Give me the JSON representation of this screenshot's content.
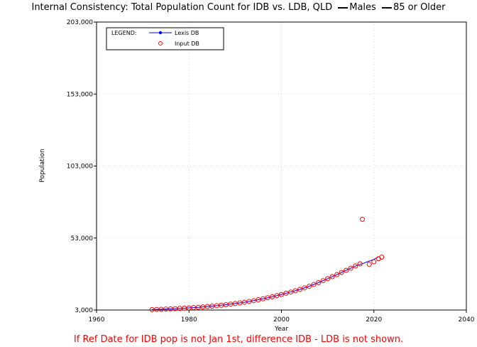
{
  "title": {
    "main": "Internal Consistency: Total Population Count for IDB vs. LDB, QLD",
    "part2": "Males",
    "part3": "85 or Older"
  },
  "footnote": "If Ref Date for IDB pop is not Jan 1st, difference IDB - LDB is not shown.",
  "legend": {
    "heading": "LEGEND:",
    "series1_label": "Lexis DB",
    "series2_label": "Input DB"
  },
  "colors": {
    "lexis": "#0000ff",
    "input": "#ff0000",
    "axis": "#000000"
  },
  "chart_data": {
    "type": "line",
    "xlabel": "Year",
    "ylabel": "Population",
    "xlim": [
      1960,
      2040
    ],
    "ylim": [
      3000,
      203000
    ],
    "xticks": [
      1960,
      1980,
      2000,
      2020,
      2040
    ],
    "xtick_labels": [
      "1960",
      "1980",
      "2000",
      "2020",
      "2040"
    ],
    "yticks": [
      3000,
      53000,
      103000,
      153000,
      203000
    ],
    "ytick_labels": [
      "3,000",
      "53,000",
      "103,000",
      "153,000",
      "203,000"
    ],
    "grid": true,
    "legend_position": "top-left",
    "series": [
      {
        "name": "Lexis DB",
        "style": "line",
        "x": [
          1972,
          1974,
          1976,
          1978,
          1980,
          1982,
          1984,
          1986,
          1988,
          1990,
          1992,
          1994,
          1996,
          1998,
          2000,
          2002,
          2004,
          2006,
          2008,
          2010,
          2012,
          2014,
          2016,
          2018,
          2020,
          2021
        ],
        "y": [
          3300,
          3500,
          3800,
          4100,
          4500,
          4900,
          5400,
          6000,
          6700,
          7500,
          8400,
          9500,
          10800,
          12200,
          13800,
          15500,
          17300,
          19500,
          22000,
          24800,
          27600,
          30600,
          33500,
          35800,
          38200,
          40000
        ]
      },
      {
        "name": "Input DB",
        "style": "markers",
        "x": [
          1972,
          1973,
          1974,
          1975,
          1976,
          1977,
          1978,
          1979,
          1980,
          1981,
          1982,
          1983,
          1984,
          1985,
          1986,
          1987,
          1988,
          1989,
          1990,
          1991,
          1992,
          1993,
          1994,
          1995,
          1996,
          1997,
          1998,
          1999,
          2000,
          2001,
          2002,
          2003,
          2004,
          2005,
          2006,
          2007,
          2008,
          2009,
          2010,
          2011,
          2012,
          2013,
          2014,
          2015,
          2016,
          2017,
          2017.5,
          2019,
          2020,
          2021,
          2021.7
        ],
        "y": [
          3300,
          3400,
          3500,
          3650,
          3800,
          3950,
          4100,
          4300,
          4500,
          4700,
          4900,
          5150,
          5400,
          5700,
          6000,
          6350,
          6700,
          7100,
          7500,
          7950,
          8400,
          8950,
          9500,
          10150,
          10800,
          11500,
          12200,
          13000,
          13800,
          14650,
          15500,
          16400,
          17300,
          18400,
          19500,
          20750,
          22000,
          23400,
          24800,
          26200,
          27600,
          29100,
          30600,
          32100,
          33600,
          35100,
          66000,
          34700,
          36500,
          38600,
          39700
        ]
      }
    ]
  }
}
